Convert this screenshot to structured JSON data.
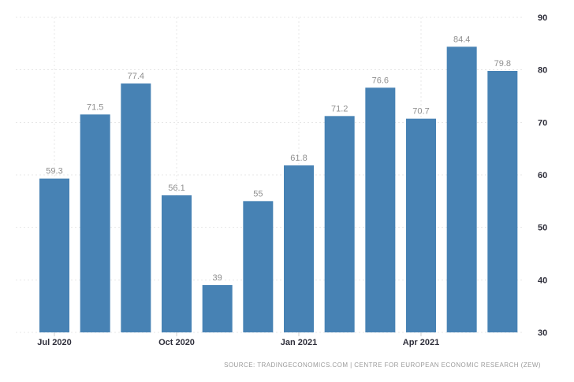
{
  "chart_data": {
    "type": "bar",
    "title": "",
    "xlabel": "",
    "ylabel": "",
    "values": [
      59.3,
      71.5,
      77.4,
      56.1,
      39,
      55,
      61.8,
      71.2,
      76.6,
      70.7,
      84.4,
      79.8
    ],
    "value_labels": [
      "59.3",
      "71.5",
      "77.4",
      "56.1",
      "39",
      "55",
      "61.8",
      "71.2",
      "76.6",
      "70.7",
      "84.4",
      "79.8"
    ],
    "x_tick_labels": [
      "Jul 2020",
      "Oct 2020",
      "Jan 2021",
      "Apr 2021"
    ],
    "x_tick_bar_indices": [
      0,
      3,
      6,
      9
    ],
    "y_ticks": [
      30,
      40,
      50,
      60,
      70,
      80,
      90
    ],
    "ylim": [
      30,
      90
    ],
    "y_axis_side": "right",
    "grid": "dashed",
    "legend_position": "none",
    "colors": {
      "bar": "#4782b4",
      "grid": "#e7e7e7",
      "tick": "#cfcfcf",
      "axis_text": "#2e2e3a",
      "value_label": "#8f8f8f",
      "source_text": "#9a9a9a",
      "background": "#ffffff"
    },
    "source": "SOURCE:  TRADINGECONOMICS.COM  |  CENTRE FOR EUROPEAN ECONOMIC RESEARCH (ZEW)"
  }
}
